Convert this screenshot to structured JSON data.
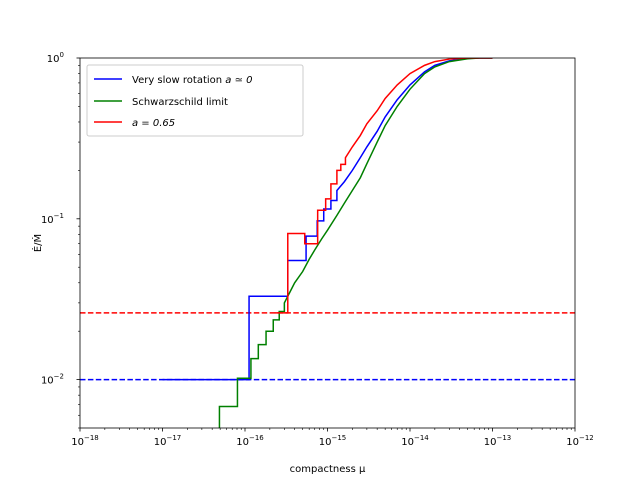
{
  "chart_data": {
    "type": "line",
    "xlabel": "compactness μ",
    "ylabel": "Ė/Ṁ",
    "xscale": "log",
    "yscale": "log",
    "xlim": [
      1e-18,
      1e-12
    ],
    "ylim": [
      0.005,
      1.0
    ],
    "grid": false,
    "legend_position": "top-left",
    "x_major_ticks": [
      1e-18,
      1e-17,
      1e-16,
      1e-15,
      1e-14,
      1e-13,
      1e-12
    ],
    "x_major_tick_labels": [
      {
        "base": "10",
        "exp": "−18"
      },
      {
        "base": "10",
        "exp": "−17"
      },
      {
        "base": "10",
        "exp": "−16"
      },
      {
        "base": "10",
        "exp": "−15"
      },
      {
        "base": "10",
        "exp": "−14"
      },
      {
        "base": "10",
        "exp": "−13"
      },
      {
        "base": "10",
        "exp": "−12"
      }
    ],
    "y_major_ticks": [
      0.01,
      0.1,
      1.0
    ],
    "y_major_tick_labels": [
      {
        "base": "10",
        "exp": "−2"
      },
      {
        "base": "10",
        "exp": "−1"
      },
      {
        "base": "10",
        "exp": "0"
      }
    ],
    "series": [
      {
        "name": "Very slow rotation a ≃ 0",
        "color": "#0000ff",
        "style": "solid",
        "x": [
          1e-17,
          1.12e-16,
          1.12e-16,
          3.3e-16,
          3.3e-16,
          5.5e-16,
          5.5e-16,
          7.5e-16,
          7.5e-16,
          9e-16,
          9e-16,
          1.1e-15,
          1.1e-15,
          1.3e-15,
          1.3e-15,
          1.6e-15,
          2e-15,
          2.5e-15,
          3e-15,
          4e-15,
          5e-15,
          7e-15,
          1e-14,
          1.5e-14,
          2e-14,
          3e-14,
          5e-14,
          7e-14,
          1e-13
        ],
        "y": [
          0.01,
          0.01,
          0.033,
          0.033,
          0.055,
          0.055,
          0.078,
          0.078,
          0.097,
          0.097,
          0.115,
          0.115,
          0.13,
          0.13,
          0.15,
          0.17,
          0.2,
          0.24,
          0.28,
          0.35,
          0.43,
          0.55,
          0.68,
          0.82,
          0.9,
          0.96,
          0.995,
          1.0,
          1.0
        ]
      },
      {
        "name": "Schwarzschild limit",
        "color": "#008000",
        "style": "solid",
        "x": [
          4.9e-17,
          4.9e-17,
          8.1e-17,
          8.1e-17,
          1.18e-16,
          1.18e-16,
          1.45e-16,
          1.45e-16,
          1.8e-16,
          1.8e-16,
          2.2e-16,
          2.2e-16,
          2.6e-16,
          2.6e-16,
          3e-16,
          3e-16,
          3.5e-16,
          4e-16,
          5e-16,
          6e-16,
          7e-16,
          8.5e-16,
          1e-15,
          1.3e-15,
          1.6e-15,
          2e-15,
          2.5e-15,
          3e-15,
          4e-15,
          5e-15,
          7e-15,
          1e-14,
          1.5e-14,
          2e-14,
          3e-14,
          5e-14,
          7e-14,
          1e-13
        ],
        "y": [
          0.005,
          0.0068,
          0.0068,
          0.0102,
          0.0102,
          0.0135,
          0.0135,
          0.0165,
          0.0165,
          0.02,
          0.02,
          0.0235,
          0.0235,
          0.0265,
          0.0265,
          0.03,
          0.035,
          0.04,
          0.047,
          0.056,
          0.064,
          0.075,
          0.085,
          0.105,
          0.125,
          0.15,
          0.18,
          0.22,
          0.3,
          0.38,
          0.5,
          0.64,
          0.8,
          0.88,
          0.95,
          0.99,
          1.0,
          1.0
        ]
      },
      {
        "name": "a = 0.65",
        "color": "#ff0000",
        "style": "solid",
        "x": [
          2.3e-16,
          3.3e-16,
          3.3e-16,
          5.3e-16,
          5.3e-16,
          7.6e-16,
          7.6e-16,
          9.5e-16,
          9.5e-16,
          1.1e-15,
          1.1e-15,
          1.3e-15,
          1.3e-15,
          1.45e-15,
          1.45e-15,
          1.65e-15,
          1.65e-15,
          2e-15,
          2.5e-15,
          3e-15,
          4e-15,
          5e-15,
          7e-15,
          1e-14,
          1.5e-14,
          2e-14,
          3e-14,
          5e-14,
          7e-14,
          1e-13
        ],
        "y": [
          0.026,
          0.026,
          0.081,
          0.081,
          0.07,
          0.07,
          0.113,
          0.113,
          0.133,
          0.133,
          0.165,
          0.165,
          0.2,
          0.2,
          0.218,
          0.218,
          0.24,
          0.28,
          0.33,
          0.39,
          0.47,
          0.56,
          0.68,
          0.8,
          0.9,
          0.95,
          0.985,
          1.0,
          1.0,
          1.0
        ]
      }
    ],
    "hlines": [
      {
        "y": 0.026,
        "color": "#ff0000",
        "style": "dashed"
      },
      {
        "y": 0.01,
        "color": "#0000ff",
        "style": "dashed"
      }
    ]
  },
  "legend": {
    "entries": [
      {
        "text": "Very slow rotation ",
        "math": "a ≃ 0",
        "color": "#0000ff"
      },
      {
        "text": "Schwarzschild limit",
        "math": "",
        "color": "#008000"
      },
      {
        "text": "",
        "math": "a = 0.65",
        "color": "#ff0000"
      }
    ]
  }
}
